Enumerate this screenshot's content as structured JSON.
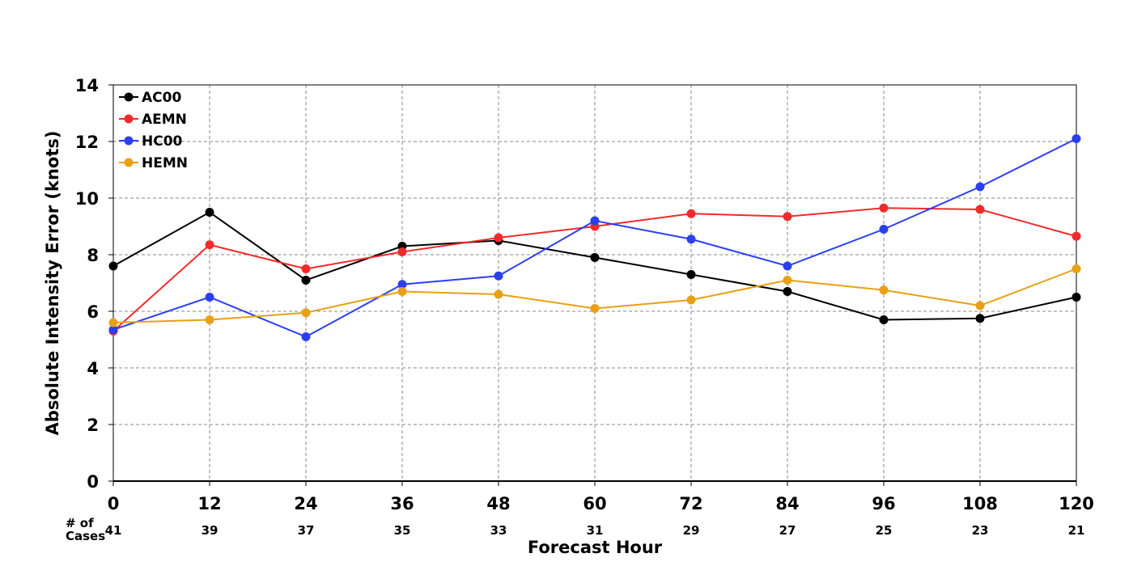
{
  "chart_data": {
    "type": "line",
    "title": "",
    "xlabel": "Forecast Hour",
    "ylabel": "Absolute Intensity Error (knots)",
    "x": [
      0,
      12,
      24,
      36,
      48,
      60,
      72,
      84,
      96,
      108,
      120
    ],
    "xlim": [
      0,
      120
    ],
    "ylim": [
      0,
      14
    ],
    "yticks": [
      0,
      2,
      4,
      6,
      8,
      10,
      12,
      14
    ],
    "grid": true,
    "legend_position": "top-left",
    "cases_label": [
      "# of",
      "Cases"
    ],
    "cases": [
      41,
      39,
      37,
      35,
      33,
      31,
      29,
      27,
      25,
      23,
      21
    ],
    "series": [
      {
        "name": "AC00",
        "color": "#000000",
        "values": [
          7.6,
          9.5,
          7.1,
          8.3,
          8.5,
          7.9,
          7.3,
          6.7,
          5.7,
          5.75,
          6.5
        ]
      },
      {
        "name": "AEMN",
        "color": "#f22a2a",
        "values": [
          5.3,
          8.35,
          7.5,
          8.1,
          8.6,
          9.0,
          9.45,
          9.35,
          9.65,
          9.6,
          8.65
        ]
      },
      {
        "name": "HC00",
        "color": "#2a3ff2",
        "values": [
          5.35,
          6.5,
          5.1,
          6.95,
          7.25,
          9.2,
          8.55,
          7.6,
          8.9,
          10.4,
          12.1
        ]
      },
      {
        "name": "HEMN",
        "color": "#e8a015",
        "values": [
          5.6,
          5.7,
          5.95,
          6.7,
          6.6,
          6.1,
          6.4,
          7.1,
          6.75,
          6.2,
          7.5
        ]
      }
    ]
  }
}
